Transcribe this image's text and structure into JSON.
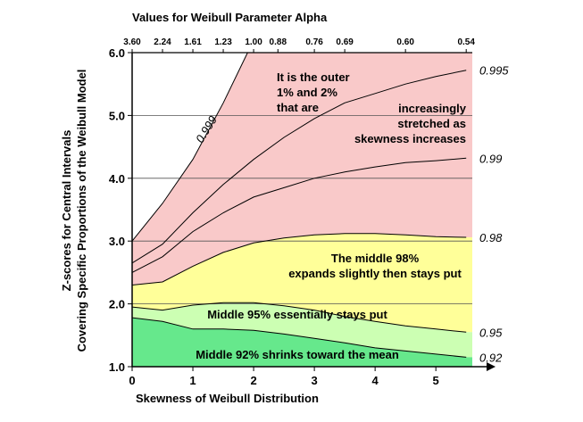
{
  "chart_data": {
    "type": "area",
    "xlabel": "Skewness of Weibull Distribution",
    "ylabel_line1": "Z-scores for Central Intervals",
    "ylabel_line2": "Covering Specific Proportions of the Weibull Model",
    "top_axis_title": "Values for Weibull Parameter Alpha",
    "xlim": [
      0,
      5.6
    ],
    "ylim": [
      1.0,
      6.0
    ],
    "x_ticks": [
      "0",
      "1",
      "2",
      "3",
      "4",
      "5"
    ],
    "y_ticks": [
      "1.0",
      "2.0",
      "3.0",
      "4.0",
      "5.0",
      "6.0"
    ],
    "top_ticks": [
      {
        "label": "3.60",
        "x": 0.0
      },
      {
        "label": "2.24",
        "x": 0.5
      },
      {
        "label": "1.61",
        "x": 1.0
      },
      {
        "label": "1.23",
        "x": 1.5
      },
      {
        "label": "1.00",
        "x": 2.0
      },
      {
        "label": "0.88",
        "x": 2.4
      },
      {
        "label": "0.76",
        "x": 3.0
      },
      {
        "label": "0.69",
        "x": 3.5
      },
      {
        "label": "0.60",
        "x": 4.5
      },
      {
        "label": "0.54",
        "x": 5.5
      }
    ],
    "grid_y": [
      2.0,
      3.0,
      4.0,
      5.0
    ],
    "series": [
      {
        "name": "0.999",
        "x": [
          0,
          0.5,
          1.0,
          1.5,
          1.9,
          2.0
        ],
        "y": [
          3.0,
          3.6,
          4.3,
          5.2,
          6.0,
          6.0
        ]
      },
      {
        "name": "0.995",
        "x": [
          0,
          0.5,
          1.0,
          1.5,
          2.0,
          2.5,
          3.0,
          3.5,
          4.0,
          4.5,
          5.0,
          5.5
        ],
        "y": [
          2.65,
          2.95,
          3.45,
          3.9,
          4.3,
          4.65,
          4.95,
          5.2,
          5.35,
          5.5,
          5.62,
          5.72
        ]
      },
      {
        "name": "0.99",
        "x": [
          0,
          0.5,
          1.0,
          1.5,
          2.0,
          2.5,
          3.0,
          3.5,
          4.0,
          4.5,
          5.0,
          5.5
        ],
        "y": [
          2.5,
          2.75,
          3.15,
          3.45,
          3.7,
          3.85,
          4.0,
          4.1,
          4.18,
          4.25,
          4.28,
          4.32
        ]
      },
      {
        "name": "0.98",
        "x": [
          0,
          0.5,
          1.0,
          1.5,
          2.0,
          2.5,
          3.0,
          3.5,
          4.0,
          4.5,
          5.0,
          5.5
        ],
        "y": [
          2.3,
          2.35,
          2.6,
          2.82,
          2.97,
          3.05,
          3.1,
          3.12,
          3.12,
          3.1,
          3.07,
          3.06
        ]
      },
      {
        "name": "0.95",
        "x": [
          0,
          0.5,
          1.0,
          1.5,
          2.0,
          2.5,
          3.0,
          3.5,
          4.0,
          4.5,
          5.0,
          5.5
        ],
        "y": [
          1.95,
          1.9,
          1.98,
          2.02,
          2.02,
          1.97,
          1.9,
          1.8,
          1.72,
          1.65,
          1.6,
          1.55
        ]
      },
      {
        "name": "0.92",
        "x": [
          0,
          0.5,
          1.0,
          1.5,
          2.0,
          2.5,
          3.0,
          3.5,
          4.0,
          4.5,
          5.0,
          5.5
        ],
        "y": [
          1.78,
          1.72,
          1.6,
          1.6,
          1.58,
          1.52,
          1.45,
          1.38,
          1.3,
          1.25,
          1.2,
          1.15
        ]
      }
    ],
    "band_colors": {
      "outer": "#f9c9c9",
      "middle98": "#ffff99",
      "middle95": "#ccffb3",
      "middle92": "#66e88c"
    },
    "annotations": {
      "outer_line1": "It is the outer",
      "outer_line2": "1% and  2%",
      "outer_line3": "that are",
      "stretch_line1": "increasingly",
      "stretch_line2": "stretched as",
      "stretch_line3": "skewness increases",
      "m98_line1": "The middle 98%",
      "m98_line2": "expands slightly then stays put",
      "m95": "Middle 95% essentially stays put",
      "m92": "Middle 92% shrinks toward the mean"
    }
  }
}
